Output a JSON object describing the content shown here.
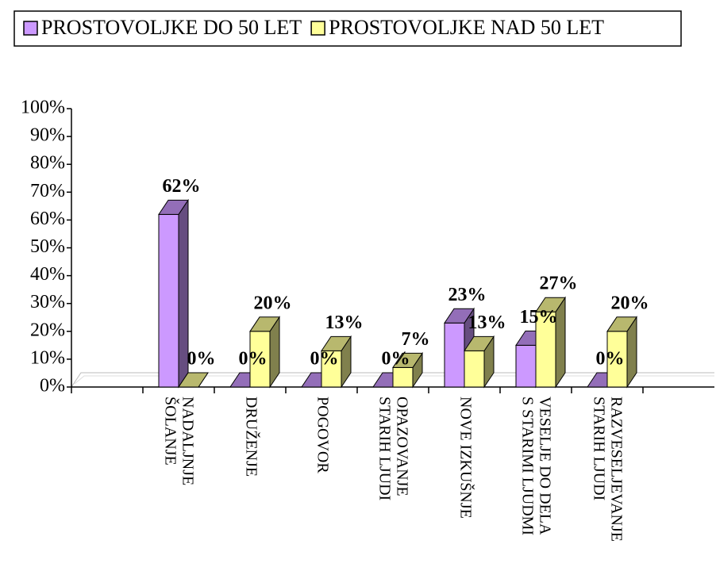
{
  "chart_data": {
    "type": "bar3d",
    "categories": [
      null,
      [
        "NADALJNJE",
        "ŠOLANJE"
      ],
      [
        "DRUŽENJE"
      ],
      [
        "POGOVOR"
      ],
      [
        "OPAZOVANJE",
        "STARIH LJUDI"
      ],
      [
        "NOVE IZKUŠNJE"
      ],
      [
        "VESELJE DO DELA",
        "S STARIMI LJUDMI"
      ],
      [
        "RAZVESELJEVANJE",
        "STARIH LJUDI"
      ],
      null
    ],
    "series": [
      {
        "name": "PROSTOVOLJKE DO 50 LET",
        "color": "#cc99ff",
        "values": [
          null,
          62,
          0,
          0,
          0,
          23,
          15,
          0,
          null
        ],
        "value_labels": [
          null,
          "62%",
          "0%",
          "0%",
          "0%",
          "23%",
          "15%",
          "0%",
          null
        ]
      },
      {
        "name": "PROSTOVOLJKE NAD 50 LET",
        "color": "#ffff99",
        "values": [
          null,
          0,
          20,
          13,
          7,
          13,
          27,
          20,
          null
        ],
        "value_labels": [
          null,
          "0%",
          "20%",
          "13%",
          "7%",
          "13%",
          "27%",
          "20%",
          null
        ]
      }
    ],
    "ylim": [
      0,
      100
    ],
    "yticks": [
      {
        "value": 0,
        "label": "0%"
      },
      {
        "value": 10,
        "label": "10%"
      },
      {
        "value": 20,
        "label": "20%"
      },
      {
        "value": 30,
        "label": "30%"
      },
      {
        "value": 40,
        "label": "40%"
      },
      {
        "value": 50,
        "label": "50%"
      },
      {
        "value": 60,
        "label": "60%"
      },
      {
        "value": 70,
        "label": "70%"
      },
      {
        "value": 80,
        "label": "80%"
      },
      {
        "value": 90,
        "label": "90%"
      },
      {
        "value": 100,
        "label": "100%"
      }
    ],
    "legend": "top"
  }
}
